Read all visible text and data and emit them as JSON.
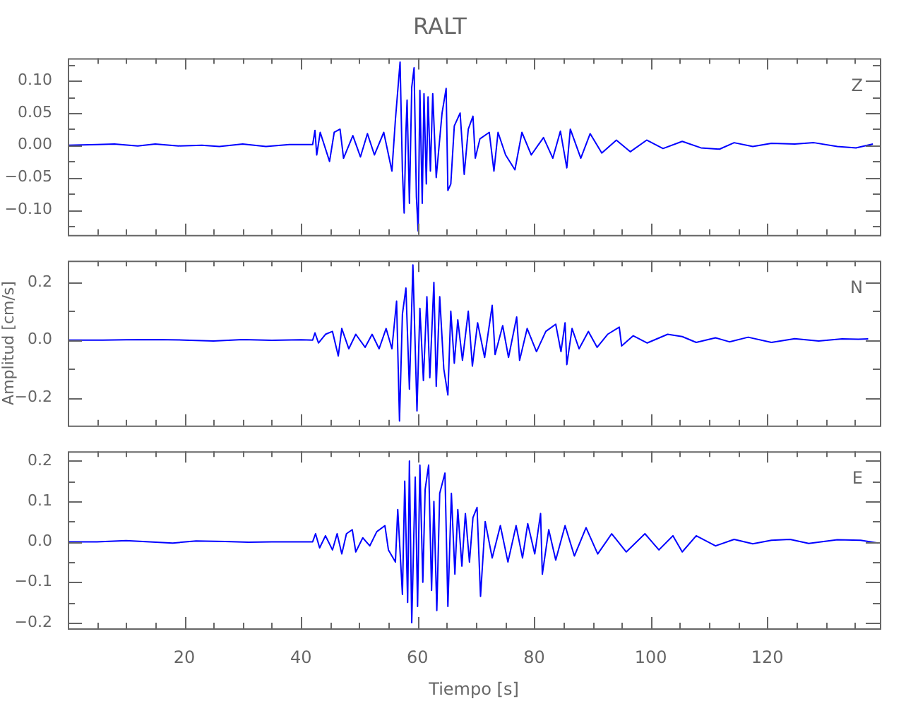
{
  "chart_data": [
    {
      "type": "line",
      "title": "RALT",
      "annotations": [
        "Z"
      ],
      "marker": "none",
      "tick_labels": "y",
      "xlim": [
        0,
        139.3
      ],
      "ylim": [
        -0.139,
        0.135
      ],
      "xticks": [
        {
          "value": 5,
          "label": null
        },
        {
          "value": 10,
          "label": null
        },
        {
          "value": 15,
          "label": null
        },
        20,
        {
          "value": 25,
          "label": null
        },
        {
          "value": 30,
          "label": null
        },
        {
          "value": 35,
          "label": null
        },
        40,
        {
          "value": 45,
          "label": null
        },
        {
          "value": 50,
          "label": null
        },
        {
          "value": 55,
          "label": null
        },
        60,
        {
          "value": 65,
          "label": null
        },
        {
          "value": 70,
          "label": null
        },
        {
          "value": 75,
          "label": null
        },
        80,
        {
          "value": 85,
          "label": null
        },
        {
          "value": 90,
          "label": null
        },
        {
          "value": 95,
          "label": null
        },
        100,
        {
          "value": 105,
          "label": null
        },
        {
          "value": 110,
          "label": null
        },
        {
          "value": 115,
          "label": null
        },
        120,
        {
          "value": 125,
          "label": null
        },
        {
          "value": 130,
          "label": null
        },
        {
          "value": 135,
          "label": null
        }
      ],
      "yticks": [
        {
          "value": -0.125,
          "label": null
        },
        {
          "value": -0.1,
          "label": "−0.10"
        },
        {
          "value": -0.075,
          "label": null
        },
        {
          "value": -0.05,
          "label": "−0.05"
        },
        {
          "value": -0.025,
          "label": null
        },
        {
          "value": 0,
          "label": "0.00"
        },
        {
          "value": 0.025,
          "label": null
        },
        {
          "value": 0.05,
          "label": "0.05"
        },
        {
          "value": 0.075,
          "label": null
        },
        {
          "value": 0.1,
          "label": "0.10"
        },
        {
          "value": 0.125,
          "label": null
        }
      ],
      "x": [
        0,
        5,
        8,
        12,
        15,
        19,
        23,
        26,
        30,
        34,
        38,
        42,
        42.4,
        42.7,
        43.3,
        44.9,
        45.7,
        46.7,
        47.3,
        48.9,
        50.2,
        51.4,
        52.6,
        54.2,
        55.6,
        56.2,
        57.0,
        57.4,
        57.7,
        58.0,
        58.2,
        58.6,
        59.0,
        59.4,
        59.8,
        60.1,
        60.4,
        60.8,
        61.1,
        61.5,
        61.8,
        62.2,
        62.6,
        63.2,
        64.2,
        64.9,
        65.2,
        65.7,
        66.3,
        67.3,
        68.0,
        68.7,
        69.5,
        69.9,
        70.7,
        72.3,
        73.1,
        73.8,
        75.1,
        76.7,
        77.9,
        79.5,
        81.6,
        83.2,
        84.5,
        85.6,
        86.2,
        88.0,
        89.6,
        91.6,
        94.1,
        96.5,
        99.3,
        102.1,
        105.4,
        108.6,
        111.8,
        114.3,
        117.5,
        120.7,
        124.7,
        128.0,
        132.0,
        135.2,
        138.1
      ],
      "series": [
        {
          "color": "#0000ff",
          "values": [
            0,
            0.001,
            0.002,
            -0.001,
            0.002,
            -0.001,
            0,
            -0.002,
            0.002,
            -0.002,
            0.001,
            0.001,
            0.023,
            -0.015,
            0.02,
            -0.025,
            0.02,
            0.025,
            -0.02,
            0.015,
            -0.018,
            0.018,
            -0.015,
            0.02,
            -0.04,
            0.04,
            0.129,
            -0.04,
            -0.105,
            0.02,
            0.07,
            -0.09,
            0.09,
            0.12,
            -0.08,
            -0.133,
            0.085,
            -0.09,
            0.08,
            -0.06,
            0.075,
            -0.04,
            0.08,
            -0.05,
            0.05,
            0.088,
            -0.07,
            -0.06,
            0.03,
            0.05,
            -0.045,
            0.025,
            0.045,
            -0.02,
            0.01,
            0.02,
            -0.04,
            0.02,
            -0.015,
            -0.038,
            0.02,
            -0.015,
            0.012,
            -0.02,
            0.022,
            -0.035,
            0.025,
            -0.02,
            0.018,
            -0.012,
            0.008,
            -0.01,
            0.008,
            -0.005,
            0.006,
            -0.004,
            -0.006,
            0.004,
            -0.002,
            0.003,
            0.002,
            0.004,
            -0.002,
            -0.004,
            0.002
          ]
        }
      ]
    },
    {
      "type": "line",
      "ylabel": "Amplitud [cm/s]",
      "annotations": [
        "N"
      ],
      "marker": "none",
      "tick_labels": "y",
      "xlim": [
        0,
        139.3
      ],
      "ylim": [
        -0.296,
        0.275
      ],
      "xticks": [
        {
          "value": 5,
          "label": null
        },
        {
          "value": 10,
          "label": null
        },
        {
          "value": 15,
          "label": null
        },
        20,
        {
          "value": 25,
          "label": null
        },
        {
          "value": 30,
          "label": null
        },
        {
          "value": 35,
          "label": null
        },
        40,
        {
          "value": 45,
          "label": null
        },
        {
          "value": 50,
          "label": null
        },
        {
          "value": 55,
          "label": null
        },
        60,
        {
          "value": 65,
          "label": null
        },
        {
          "value": 70,
          "label": null
        },
        {
          "value": 75,
          "label": null
        },
        80,
        {
          "value": 85,
          "label": null
        },
        {
          "value": 90,
          "label": null
        },
        {
          "value": 95,
          "label": null
        },
        100,
        {
          "value": 105,
          "label": null
        },
        {
          "value": 110,
          "label": null
        },
        {
          "value": 115,
          "label": null
        },
        120,
        {
          "value": 125,
          "label": null
        },
        {
          "value": 130,
          "label": null
        },
        {
          "value": 135,
          "label": null
        }
      ],
      "yticks": [
        {
          "value": -0.2,
          "label": "−0.2"
        },
        {
          "value": -0.1,
          "label": null
        },
        {
          "value": 0,
          "label": "0.0"
        },
        {
          "value": 0.1,
          "label": null
        },
        {
          "value": 0.2,
          "label": "0.2"
        }
      ],
      "x": [
        0,
        6,
        10,
        15,
        20,
        25,
        30,
        35,
        40,
        42,
        42.4,
        43.0,
        44.2,
        45.4,
        46.4,
        47.0,
        48.2,
        49.4,
        51.0,
        52.2,
        53.4,
        54.6,
        55.6,
        56.4,
        56.9,
        57.4,
        58.0,
        58.6,
        59.2,
        59.9,
        60.4,
        61.0,
        61.6,
        62.1,
        62.8,
        63.2,
        63.8,
        64.5,
        65.2,
        65.7,
        66.3,
        66.9,
        67.7,
        68.7,
        69.4,
        70.3,
        71.5,
        72.8,
        73.3,
        74.6,
        75.6,
        77.0,
        77.5,
        78.8,
        80.4,
        82.0,
        83.7,
        84.6,
        85.3,
        85.6,
        86.5,
        87.7,
        89.3,
        90.8,
        92.6,
        94.6,
        95.0,
        97.0,
        99.4,
        102.9,
        105.4,
        107.8,
        111.1,
        113.5,
        116.7,
        120.7,
        124.7,
        128.8,
        132.8,
        135.6,
        137.3
      ],
      "series": [
        {
          "color": "#0000ff",
          "values": [
            0,
            0,
            0.001,
            0.002,
            0,
            -0.003,
            0.002,
            -0.001,
            0.001,
            0,
            0.025,
            -0.01,
            0.02,
            0.03,
            -0.055,
            0.04,
            -0.03,
            0.02,
            -0.025,
            0.02,
            -0.03,
            0.04,
            -0.03,
            0.135,
            -0.28,
            0.09,
            0.18,
            -0.17,
            0.26,
            -0.245,
            0.11,
            -0.14,
            0.15,
            -0.13,
            0.2,
            -0.16,
            0.15,
            -0.1,
            -0.19,
            0.1,
            -0.08,
            0.07,
            -0.07,
            0.1,
            -0.09,
            0.06,
            -0.06,
            0.12,
            -0.05,
            0.05,
            -0.06,
            0.08,
            -0.07,
            0.04,
            -0.04,
            0.03,
            0.055,
            -0.04,
            0.06,
            -0.085,
            0.04,
            -0.03,
            0.03,
            -0.025,
            0.02,
            0.045,
            -0.02,
            0.015,
            -0.01,
            0.02,
            0.012,
            -0.008,
            0.008,
            -0.006,
            0.01,
            -0.008,
            0.005,
            -0.003,
            0.004,
            0.003,
            0.004
          ]
        }
      ]
    },
    {
      "type": "line",
      "xlabel": "Tiempo [s]",
      "annotations": [
        "E"
      ],
      "marker": "none",
      "xlim": [
        0,
        139.3
      ],
      "ylim": [
        -0.214,
        0.224
      ],
      "xticks": [
        {
          "value": 5,
          "label": null
        },
        {
          "value": 10,
          "label": null
        },
        {
          "value": 15,
          "label": null
        },
        20,
        {
          "value": 25,
          "label": null
        },
        {
          "value": 30,
          "label": null
        },
        {
          "value": 35,
          "label": null
        },
        40,
        {
          "value": 45,
          "label": null
        },
        {
          "value": 50,
          "label": null
        },
        {
          "value": 55,
          "label": null
        },
        60,
        {
          "value": 65,
          "label": null
        },
        {
          "value": 70,
          "label": null
        },
        {
          "value": 75,
          "label": null
        },
        80,
        {
          "value": 85,
          "label": null
        },
        {
          "value": 90,
          "label": null
        },
        {
          "value": 95,
          "label": null
        },
        100,
        {
          "value": 105,
          "label": null
        },
        {
          "value": 110,
          "label": null
        },
        {
          "value": 115,
          "label": null
        },
        120,
        {
          "value": 125,
          "label": null
        },
        {
          "value": 130,
          "label": null
        },
        {
          "value": 135,
          "label": null
        }
      ],
      "yticks": [
        {
          "value": -0.2,
          "label": "−0.2"
        },
        {
          "value": -0.15,
          "label": null
        },
        {
          "value": -0.1,
          "label": "−0.1"
        },
        {
          "value": -0.05,
          "label": null
        },
        {
          "value": 0,
          "label": "0.0"
        },
        {
          "value": 0.05,
          "label": null
        },
        {
          "value": 0.1,
          "label": "0.1"
        },
        {
          "value": 0.15,
          "label": null
        },
        {
          "value": 0.2,
          "label": "0.2"
        }
      ],
      "x": [
        0,
        5,
        10,
        14,
        18,
        22,
        27,
        31,
        35,
        38,
        42,
        42.5,
        43.2,
        44.2,
        45.4,
        46.2,
        47.0,
        47.8,
        48.8,
        49.4,
        50.6,
        51.8,
        53.0,
        54.4,
        55.0,
        56.2,
        56.6,
        57.4,
        57.8,
        58.3,
        58.6,
        59.0,
        59.6,
        60.0,
        60.4,
        60.9,
        61.3,
        61.9,
        62.4,
        62.8,
        63.3,
        63.8,
        64.7,
        65.2,
        65.8,
        66.4,
        66.9,
        67.6,
        68.2,
        68.9,
        69.5,
        70.2,
        70.8,
        71.6,
        72.8,
        74.2,
        75.5,
        76.9,
        78.0,
        78.9,
        80.1,
        81.1,
        81.4,
        82.5,
        83.7,
        85.3,
        86.9,
        88.9,
        90.9,
        93.3,
        95.8,
        99.0,
        101.4,
        103.8,
        105.4,
        107.8,
        111.1,
        114.3,
        117.5,
        120.7,
        123.9,
        127.1,
        132.0,
        136.0,
        139.0
      ],
      "series": [
        {
          "color": "#0000ff",
          "values": [
            0,
            0,
            0.003,
            0,
            -0.003,
            0.002,
            0.001,
            -0.001,
            0,
            0,
            0,
            0.02,
            -0.015,
            0.015,
            -0.02,
            0.02,
            -0.03,
            0.02,
            0.03,
            -0.025,
            0.01,
            -0.01,
            0.025,
            0.04,
            -0.02,
            -0.05,
            0.08,
            -0.13,
            0.15,
            -0.15,
            0.2,
            -0.2,
            0.16,
            -0.16,
            0.19,
            -0.1,
            0.13,
            0.19,
            -0.12,
            0.1,
            -0.17,
            0.12,
            0.17,
            -0.16,
            0.12,
            -0.08,
            0.08,
            -0.06,
            0.07,
            -0.05,
            0.06,
            0.085,
            -0.135,
            0.05,
            -0.04,
            0.04,
            -0.05,
            0.04,
            -0.04,
            0.045,
            -0.03,
            0.07,
            -0.08,
            0.03,
            -0.045,
            0.04,
            -0.035,
            0.035,
            -0.03,
            0.02,
            -0.025,
            0.02,
            -0.02,
            0.015,
            -0.025,
            0.015,
            -0.01,
            0.006,
            -0.005,
            0.004,
            0.006,
            -0.004,
            0.005,
            0.004,
            -0.003
          ]
        }
      ]
    }
  ]
}
